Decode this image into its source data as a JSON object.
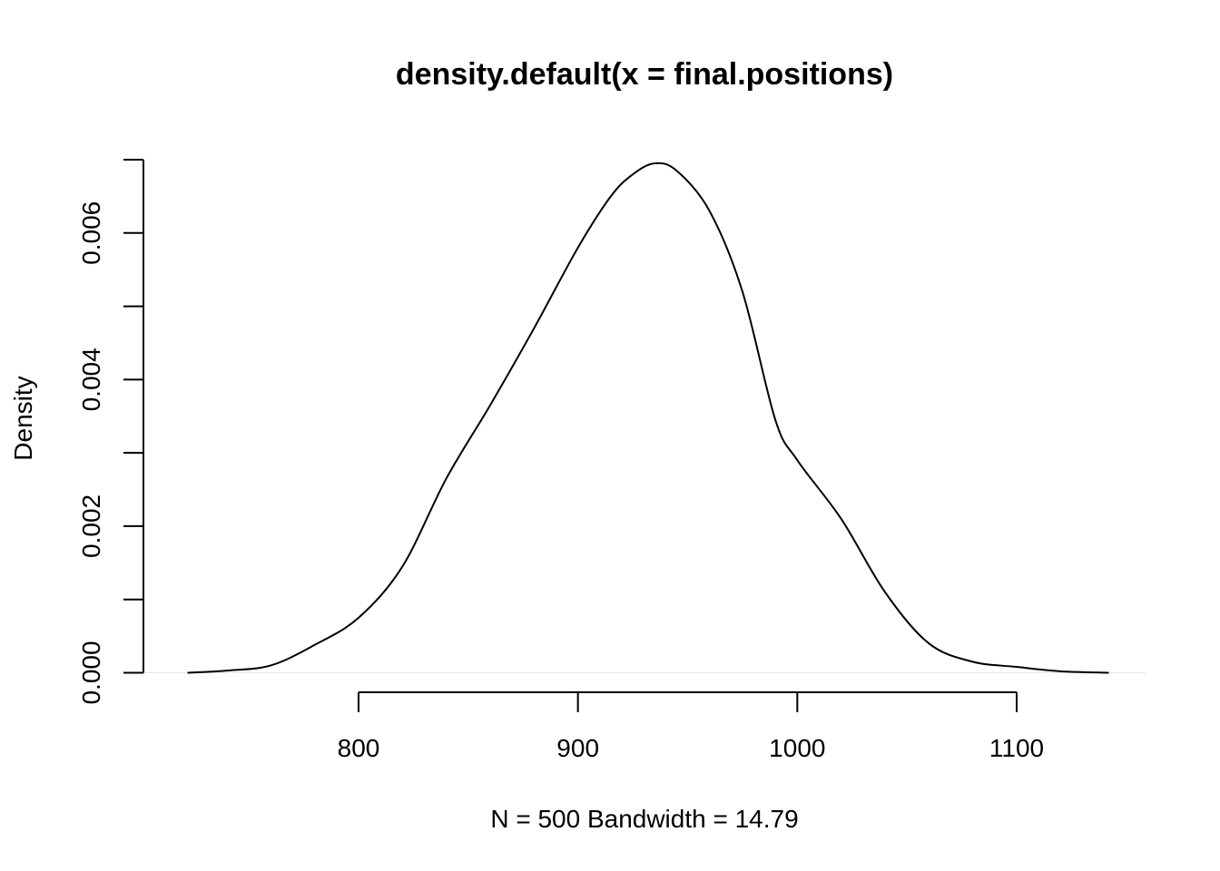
{
  "chart_data": {
    "type": "line",
    "title": "density.default(x = final.positions)",
    "xlabel": "N = 500   Bandwidth = 14.79",
    "ylabel": "Density",
    "xlim": [
      720,
      1145
    ],
    "ylim": [
      0,
      0.007
    ],
    "x_ticks": [
      800,
      900,
      1000,
      1100
    ],
    "x_tick_labels": [
      "800",
      "900",
      "1000",
      "1100"
    ],
    "y_ticks": [
      0,
      0.001,
      0.002,
      0.003,
      0.004,
      0.005,
      0.006,
      0.007
    ],
    "y_tick_labels": [
      "0.000",
      "",
      "0.002",
      "",
      "0.004",
      "",
      "0.006",
      ""
    ],
    "grid": false,
    "series": [
      {
        "color": "#000000",
        "x": [
          722,
          740,
          760,
          780,
          800,
          820,
          840,
          860,
          880,
          900,
          915,
          925,
          935,
          945,
          960,
          975,
          990,
          1000,
          1020,
          1040,
          1060,
          1080,
          1100,
          1120,
          1142
        ],
        "y": [
          0.0,
          3e-05,
          0.0001,
          0.00038,
          0.00075,
          0.00145,
          0.00265,
          0.00365,
          0.0047,
          0.0058,
          0.0065,
          0.0068,
          0.00695,
          0.00685,
          0.0063,
          0.0052,
          0.00345,
          0.0029,
          0.0021,
          0.0011,
          0.0004,
          0.00015,
          8e-05,
          2e-05,
          0.0
        ]
      }
    ]
  }
}
